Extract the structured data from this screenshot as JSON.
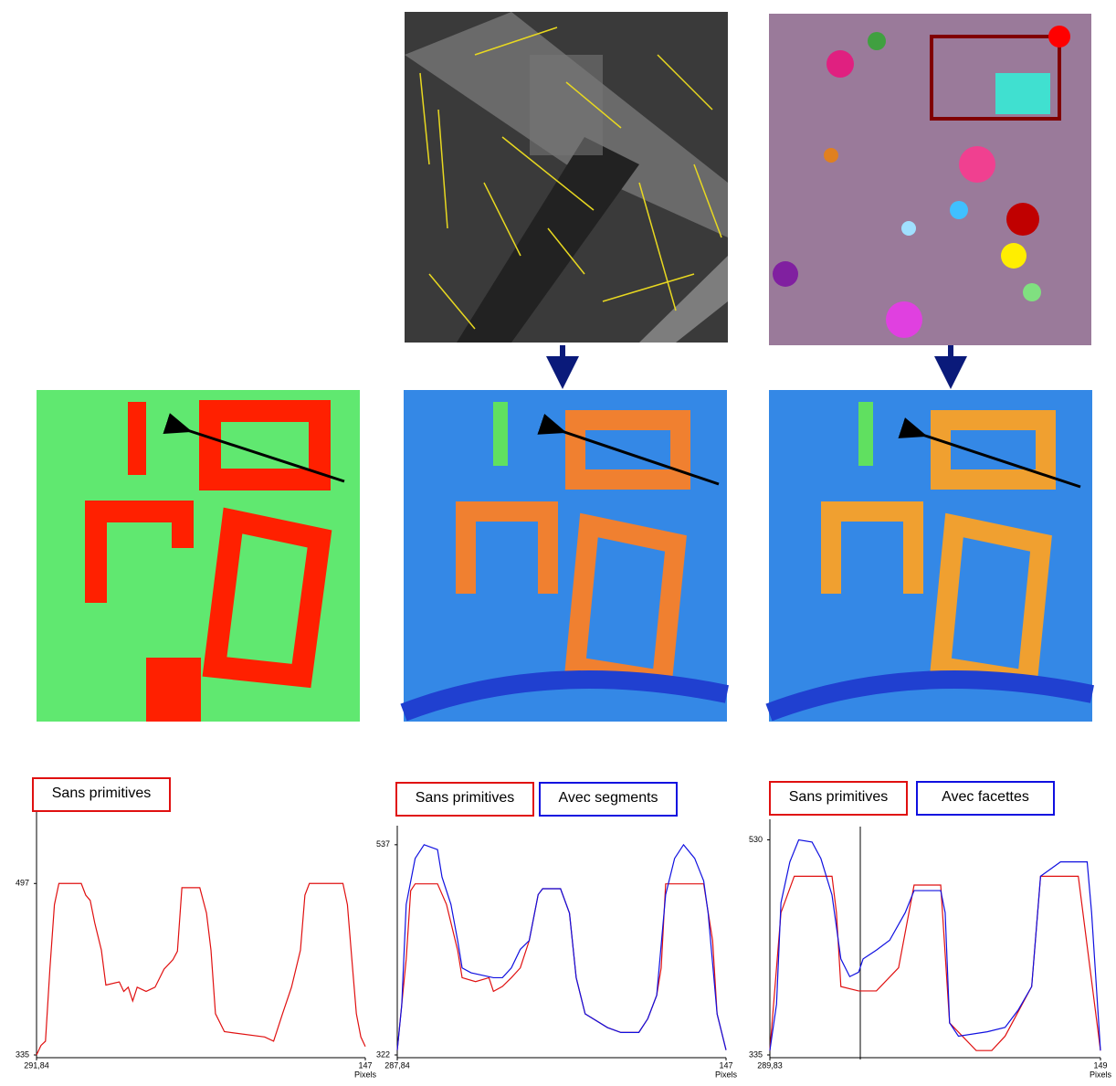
{
  "chart_data": [
    {
      "type": "line",
      "x_label": "Pixels",
      "xlim": [
        0,
        147
      ],
      "xticks": [
        {
          "value": 0,
          "label": "291,84"
        },
        147
      ],
      "ylim": [
        335,
        568
      ],
      "yticks": [
        335,
        497
      ],
      "series": [
        {
          "name": "Sans primitives",
          "color": "#e01010",
          "x": [
            0,
            2,
            4,
            6,
            8,
            10,
            20,
            22,
            24,
            26,
            29,
            31,
            37,
            39,
            41,
            43,
            45,
            49,
            53,
            57,
            61,
            63,
            65,
            73,
            76,
            78,
            80,
            84,
            102,
            106,
            110,
            114,
            118,
            120,
            122,
            137,
            139,
            141,
            143,
            145,
            147
          ],
          "values": [
            335,
            344,
            348,
            417,
            477,
            497,
            497,
            486,
            481,
            460,
            434,
            401,
            404,
            395,
            399,
            386,
            399,
            395,
            399,
            416,
            425,
            433,
            493,
            493,
            469,
            434,
            374,
            357,
            352,
            348,
            374,
            399,
            434,
            486,
            497,
            497,
            477,
            425,
            374,
            352,
            343
          ]
        }
      ]
    },
    {
      "type": "line",
      "x_label": "Pixels",
      "xlim": [
        0,
        147
      ],
      "xticks": [
        {
          "value": 0,
          "label": "287,84"
        },
        147
      ],
      "ylim": [
        322,
        549
      ],
      "yticks": [
        322,
        537
      ],
      "series": [
        {
          "name": "Sans primitives",
          "color": "#e01010",
          "x": [
            0,
            4,
            6,
            8,
            18,
            22,
            27,
            29,
            35,
            41,
            43,
            47,
            51,
            55,
            59,
            63,
            65,
            73,
            77,
            80,
            84,
            94,
            100,
            108,
            112,
            116,
            118,
            120,
            137,
            141,
            143,
            147
          ],
          "values": [
            327,
            420,
            490,
            497,
            497,
            476,
            429,
            401,
            397,
            401,
            387,
            392,
            401,
            411,
            439,
            486,
            492,
            492,
            467,
            401,
            364,
            350,
            345,
            345,
            359,
            383,
            411,
            497,
            497,
            439,
            364,
            327
          ]
        },
        {
          "name": "Avec segments",
          "color": "#1010e0",
          "x": [
            0,
            2,
            4,
            8,
            12,
            18,
            20,
            24,
            27,
            29,
            33,
            43,
            47,
            51,
            55,
            59,
            63,
            65,
            73,
            77,
            80,
            84,
            94,
            100,
            108,
            112,
            116,
            120,
            124,
            128,
            133,
            137,
            139,
            143,
            147
          ],
          "values": [
            327,
            373,
            476,
            523,
            537,
            532,
            504,
            476,
            439,
            411,
            406,
            401,
            401,
            411,
            430,
            439,
            486,
            492,
            492,
            467,
            401,
            364,
            350,
            345,
            345,
            359,
            383,
            486,
            523,
            537,
            523,
            500,
            467,
            364,
            327
          ]
        }
      ]
    },
    {
      "type": "line",
      "x_label": "Pixels",
      "xlim": [
        0,
        149
      ],
      "xticks": [
        {
          "value": 0,
          "label": "289,83"
        },
        149
      ],
      "ylim": [
        335,
        542
      ],
      "yticks": [
        335,
        530
      ],
      "series": [
        {
          "name": "Sans primitives",
          "color": "#e01010",
          "x": [
            0,
            5,
            11,
            28,
            30,
            32,
            40,
            48,
            58,
            65,
            77,
            81,
            93,
            100,
            106,
            118,
            122,
            139,
            149
          ],
          "values": [
            339,
            464,
            497,
            497,
            464,
            397,
            393,
            393,
            414,
            489,
            489,
            364,
            339,
            339,
            352,
            397,
            497,
            497,
            339
          ]
        },
        {
          "name": "Avec facettes",
          "color": "#1010e0",
          "x": [
            0,
            3,
            5,
            9,
            13,
            19,
            23,
            28,
            32,
            36,
            40,
            42,
            48,
            54,
            61,
            65,
            77,
            79,
            81,
            85,
            98,
            106,
            112,
            118,
            122,
            131,
            143,
            145,
            149
          ],
          "values": [
            339,
            381,
            473,
            510,
            530,
            528,
            513,
            480,
            422,
            406,
            410,
            422,
            430,
            439,
            464,
            484,
            484,
            464,
            364,
            352,
            356,
            360,
            376,
            397,
            497,
            510,
            510,
            464,
            339
          ]
        }
      ]
    }
  ]
}
